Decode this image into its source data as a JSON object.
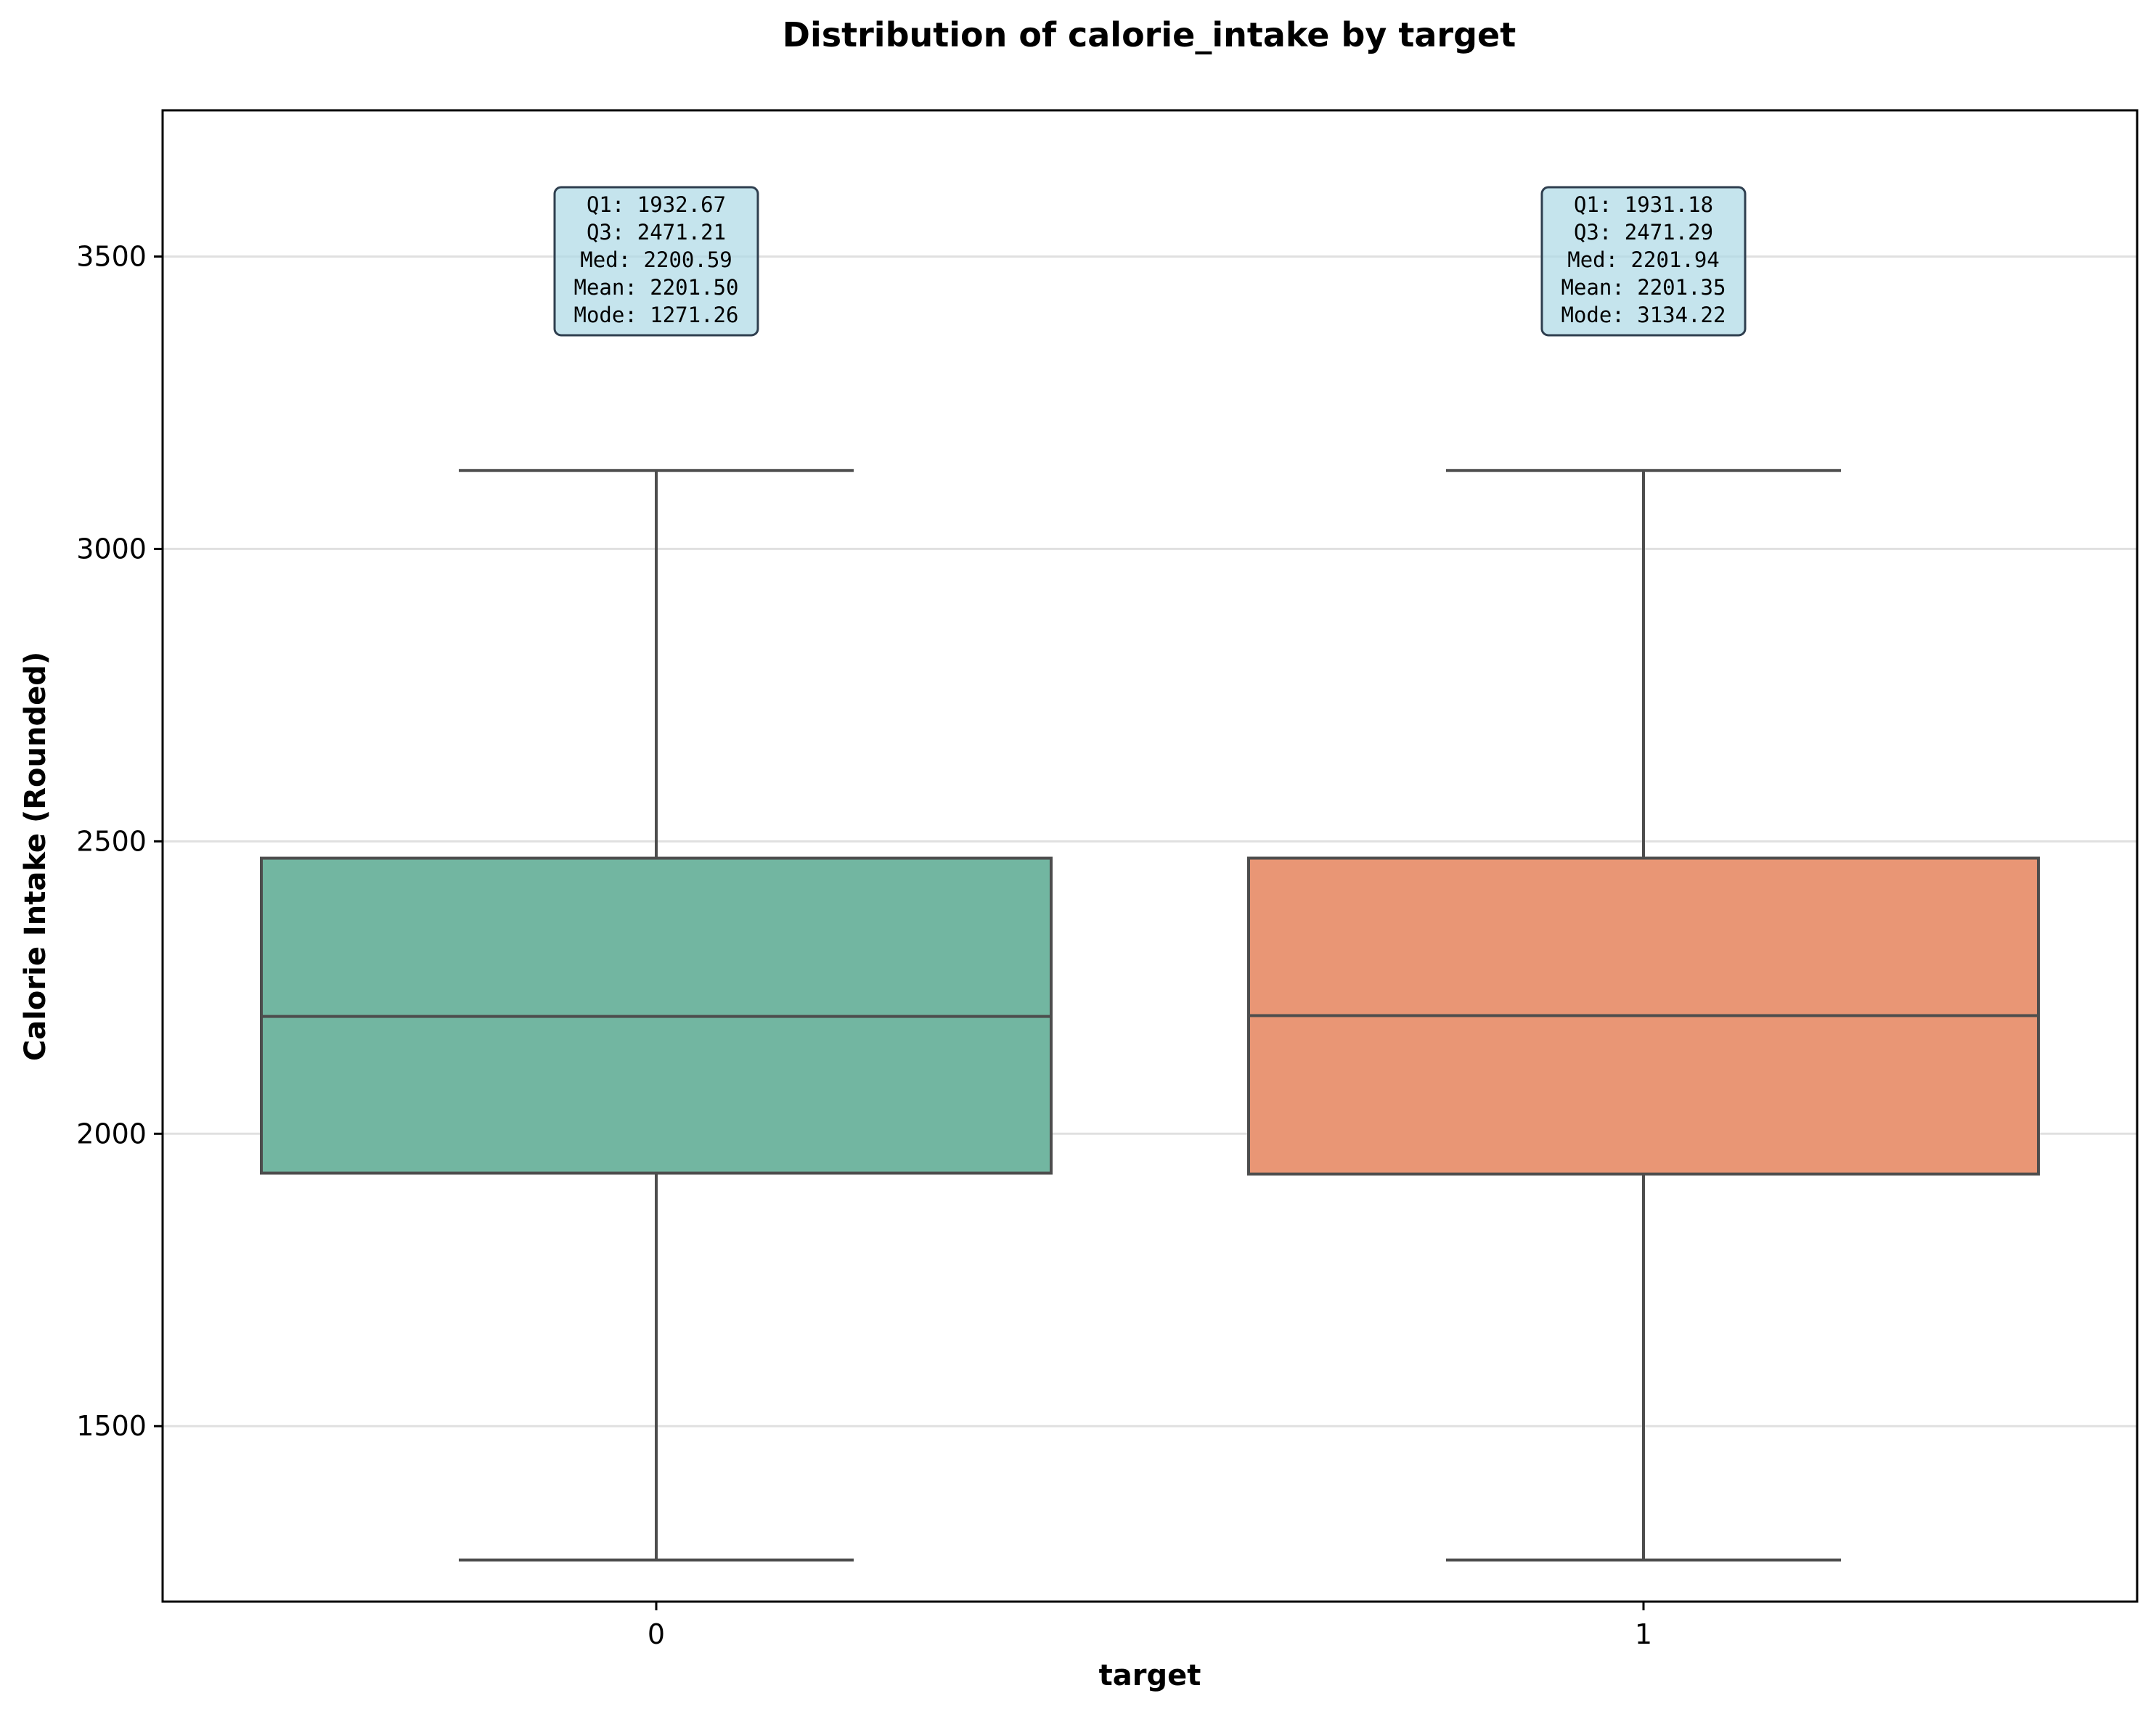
{
  "chart_data": {
    "type": "box",
    "title": "Distribution of calorie_intake by target",
    "xlabel": "target",
    "ylabel": "Calorie Intake (Rounded)",
    "categories": [
      "0",
      "1"
    ],
    "ylim": [
      1200,
      3750
    ],
    "yticks": [
      1500,
      2000,
      2500,
      3000,
      3500
    ],
    "grid": "y",
    "colors": [
      "#72b6a1",
      "#e99675"
    ],
    "boxes": [
      {
        "category": "0",
        "whisker_low": 1271.26,
        "q1": 1932.67,
        "median": 2200.59,
        "q3": 2471.21,
        "whisker_high": 3134.22,
        "stats_lines": [
          "Q1: 1932.67",
          "Q3: 2471.21",
          "Med: 2200.59",
          "Mean: 2201.50",
          "Mode: 1271.26"
        ]
      },
      {
        "category": "1",
        "whisker_low": 1271.26,
        "q1": 1931.18,
        "median": 2201.94,
        "q3": 2471.29,
        "whisker_high": 3134.22,
        "stats_lines": [
          "Q1: 1931.18",
          "Q3: 2471.29",
          "Med: 2201.94",
          "Mean: 2201.35",
          "Mode: 3134.22"
        ]
      }
    ]
  }
}
